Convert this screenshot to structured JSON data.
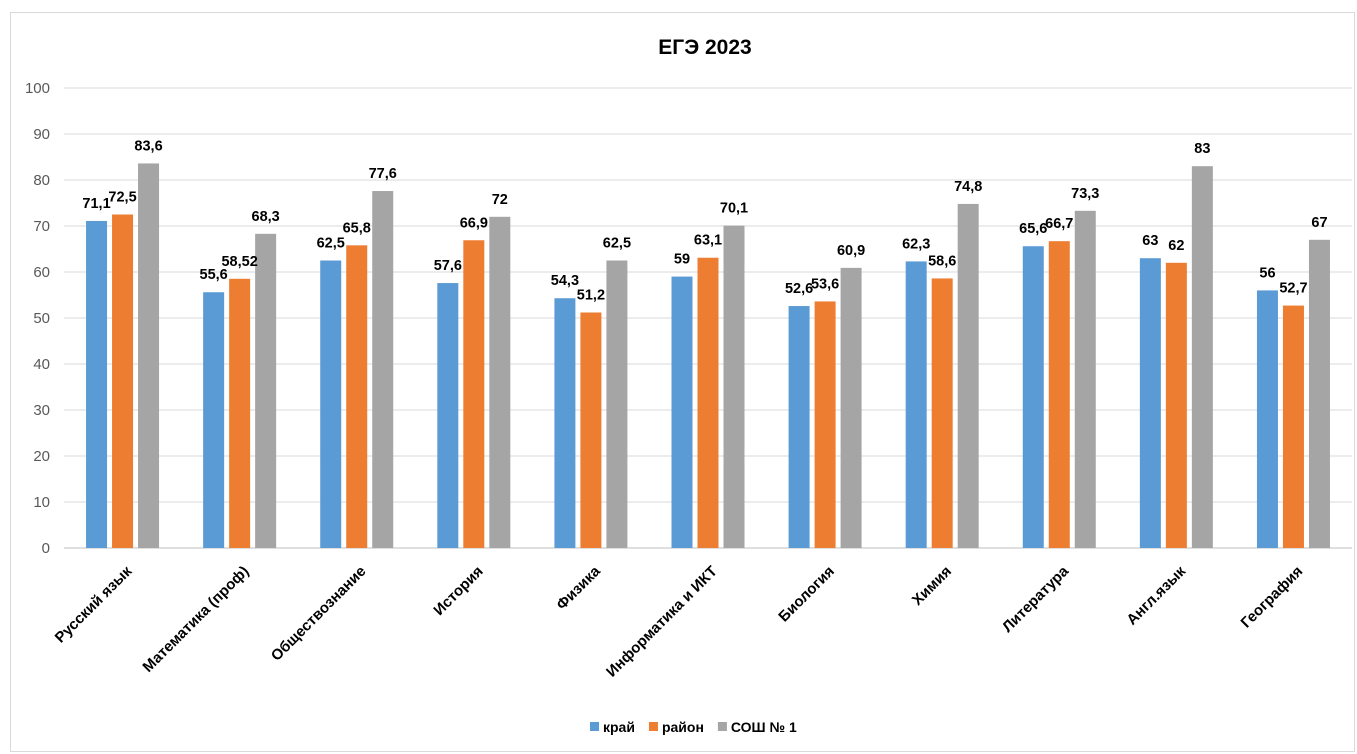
{
  "chart_data": {
    "type": "bar",
    "title": "ЕГЭ 2023",
    "ylim": [
      0,
      100
    ],
    "yticks": [
      0,
      10,
      20,
      30,
      40,
      50,
      60,
      70,
      80,
      90,
      100
    ],
    "grid": true,
    "legend_position": "bottom",
    "categories": [
      "Русский язык",
      "Математика (проф)",
      "Обществознание",
      "История",
      "Физика",
      "Информатика и ИКТ",
      "Биология",
      "Химия",
      "Литература",
      "Англ.язык",
      "География"
    ],
    "series": [
      {
        "name": "край",
        "color": "#5b9bd5",
        "values": [
          71.1,
          55.6,
          62.5,
          57.6,
          54.3,
          59,
          52.6,
          62.3,
          65.6,
          63,
          56
        ],
        "labels": [
          "71,1",
          "55,6",
          "62,5",
          "57,6",
          "54,3",
          "59",
          "52,6",
          "62,3",
          "65,6",
          "63",
          "56"
        ]
      },
      {
        "name": "район",
        "color": "#ed7d31",
        "values": [
          72.5,
          58.52,
          65.8,
          66.9,
          51.2,
          63.1,
          53.6,
          58.6,
          66.7,
          62,
          52.7
        ],
        "labels": [
          "72,5",
          "58,52",
          "65,8",
          "66,9",
          "51,2",
          "63,1",
          "53,6",
          "58,6",
          "66,7",
          "62",
          "52,7"
        ]
      },
      {
        "name": "СОШ № 1",
        "color": "#a5a5a5",
        "values": [
          83.6,
          68.3,
          77.6,
          72,
          62.5,
          70.1,
          60.9,
          74.8,
          73.3,
          83,
          67
        ],
        "labels": [
          "83,6",
          "68,3",
          "77,6",
          "72",
          "62,5",
          "70,1",
          "60,9",
          "74,8",
          "73,3",
          "83",
          "67"
        ]
      }
    ]
  }
}
